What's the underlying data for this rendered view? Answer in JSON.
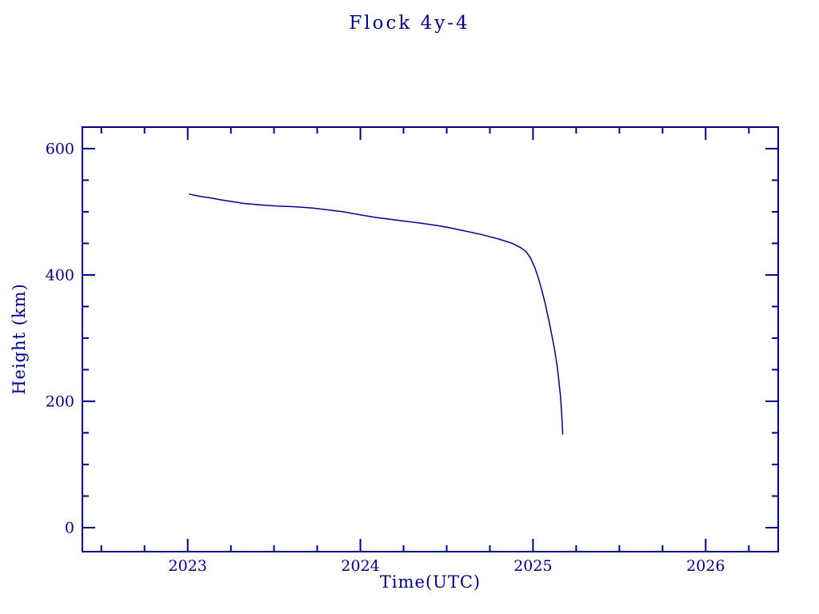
{
  "colors": {
    "accent": "#00008B",
    "background": "#FFFFFF"
  },
  "chart_data": {
    "type": "line",
    "title": "Flock 4y-4",
    "xlabel": "Time(UTC)",
    "ylabel": "Height (km)",
    "xlim": [
      2022.39,
      2026.42
    ],
    "ylim": [
      -38,
      634
    ],
    "x_ticks": {
      "major": [
        2023,
        2024,
        2025,
        2026
      ],
      "minor_step": 0.25
    },
    "y_ticks": {
      "major": [
        0,
        200,
        400,
        600
      ],
      "minor_step": 50
    },
    "grid": false,
    "frame": true,
    "legend": false,
    "line_color": "#00008B",
    "axis_color": "#00008B",
    "series": [
      {
        "name": "Flock 4y-4 height",
        "x": [
          2023.01,
          2023.04,
          2023.08,
          2023.13,
          2023.19,
          2023.26,
          2023.33,
          2023.42,
          2023.52,
          2023.62,
          2023.72,
          2023.81,
          2023.9,
          2024.0,
          2024.09,
          2024.23,
          2024.35,
          2024.45,
          2024.51,
          2024.6,
          2024.7,
          2024.8,
          2024.88,
          2024.93,
          2024.96,
          2024.985,
          2025.01,
          2025.03,
          2025.05,
          2025.07,
          2025.09,
          2025.11,
          2025.125,
          2025.14,
          2025.15,
          2025.158,
          2025.164,
          2025.169,
          2025.172
        ],
        "y": [
          528,
          526,
          524,
          522,
          519,
          516,
          513,
          511,
          509,
          508,
          506,
          503,
          500,
          495,
          491,
          486,
          482,
          478,
          475,
          470,
          464,
          457,
          450,
          443,
          437,
          427,
          412,
          396,
          377,
          355,
          330,
          303,
          282,
          255,
          232,
          210,
          188,
          166,
          148
        ]
      }
    ]
  }
}
